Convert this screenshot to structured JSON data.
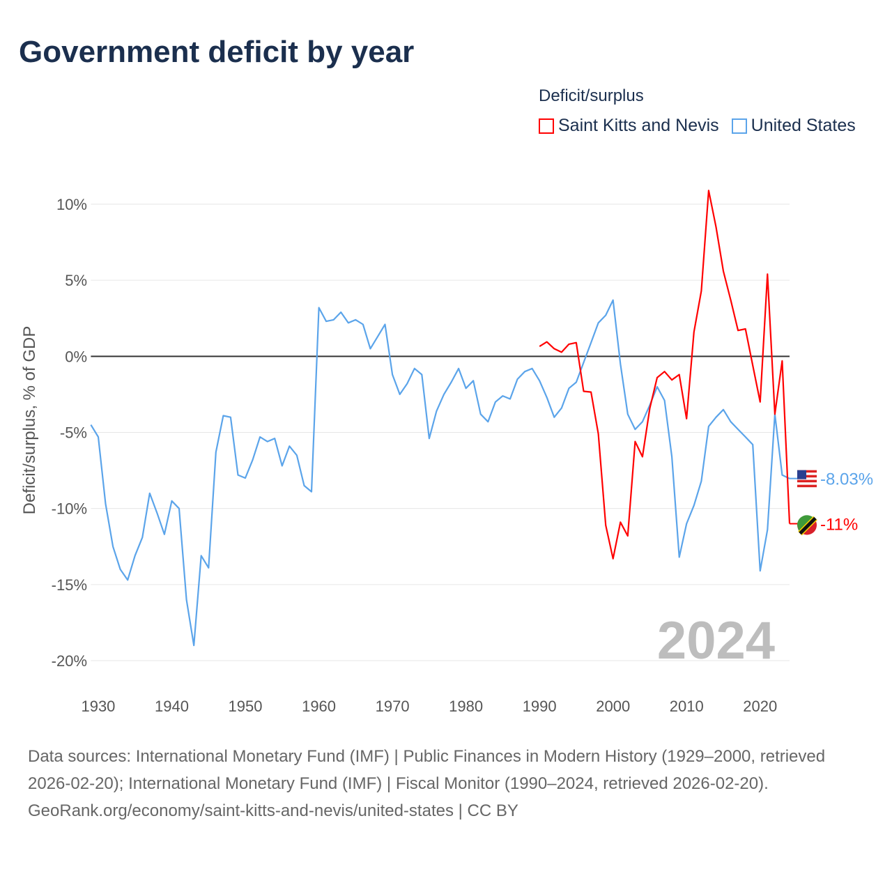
{
  "title": "Government deficit by year",
  "legend": {
    "title": "Deficit/surplus",
    "items": [
      {
        "label": "Saint Kitts and Nevis",
        "color": "#ff0000"
      },
      {
        "label": "United States",
        "color": "#5ba4ea"
      }
    ]
  },
  "watermark_year": "2024",
  "footer": {
    "sources": "Data sources: International Monetary Fund (IMF) | Public Finances in Modern History (1929–2000, retrieved 2026-02-20); International Monetary Fund (IMF) | Fiscal Monitor (1990–2024, retrieved 2026-02-20).",
    "credit": "GeoRank.org/economy/saint-kitts-and-nevis/united-states | CC BY"
  },
  "chart_data": {
    "type": "line",
    "title": "Government deficit by year",
    "xlabel": "",
    "ylabel": "Deficit/surplus, % of GDP",
    "xlim": [
      1929,
      2024
    ],
    "ylim": [
      -20,
      10
    ],
    "xticks": [
      1930,
      1940,
      1950,
      1960,
      1970,
      1980,
      1990,
      2000,
      2010,
      2020
    ],
    "xtick_labels": [
      "1930",
      "1940",
      "1950",
      "1960",
      "1970",
      "1980",
      "1990",
      "2000",
      "2010",
      "2020"
    ],
    "yticks": [
      10,
      5,
      0,
      -5,
      -10,
      -15,
      -20
    ],
    "ytick_labels": [
      "10%",
      "5%",
      "0%",
      "-5%",
      "-10%",
      "-15%",
      "-20%"
    ],
    "grid": true,
    "legend_position": "top-right",
    "series": [
      {
        "name": "United States",
        "color": "#5ba4ea",
        "end_label": "-8.03%",
        "start_year": 1929,
        "values": [
          -4.5,
          -5.3,
          -9.7,
          -12.5,
          -14.0,
          -14.7,
          -13.1,
          -11.9,
          -9.0,
          -10.3,
          -11.7,
          -9.5,
          -10.0,
          -16.0,
          -19.0,
          -13.1,
          -13.9,
          -6.3,
          -3.9,
          -4.0,
          -7.8,
          -8.0,
          -6.8,
          -5.3,
          -5.6,
          -5.4,
          -7.2,
          -5.9,
          -6.5,
          -8.5,
          -8.9,
          3.2,
          2.3,
          2.4,
          2.9,
          2.2,
          2.4,
          2.1,
          0.5,
          1.3,
          2.1,
          -1.2,
          -2.5,
          -1.8,
          -0.8,
          -1.2,
          -5.4,
          -3.6,
          -2.5,
          -1.7,
          -0.8,
          -2.1,
          -1.6,
          -3.8,
          -4.3,
          -3.0,
          -2.6,
          -2.8,
          -1.5,
          -1.0,
          -0.8,
          -1.6,
          -2.7,
          -4.0,
          -3.4,
          -2.1,
          -1.7,
          -0.4,
          0.9,
          2.2,
          2.7,
          3.7,
          -0.5,
          -3.8,
          -4.8,
          -4.3,
          -3.2,
          -2.0,
          -2.9,
          -6.6,
          -13.2,
          -11.0,
          -9.8,
          -8.2,
          -4.6,
          -4.0,
          -3.5,
          -4.3,
          -4.8,
          -5.3,
          -5.8,
          -14.1,
          -11.4,
          -3.8,
          -7.8,
          -8.03
        ]
      },
      {
        "name": "Saint Kitts and Nevis",
        "color": "#ff0000",
        "end_label": "-11%",
        "start_year": 1990,
        "values": [
          0.65,
          0.95,
          0.5,
          0.27,
          0.8,
          0.9,
          -2.3,
          -2.35,
          -5.1,
          -11.1,
          -13.3,
          -10.9,
          -11.8,
          -5.6,
          -6.6,
          -3.4,
          -1.4,
          -1.0,
          -1.55,
          -1.2,
          -4.1,
          1.6,
          4.3,
          10.9,
          8.5,
          5.6,
          3.7,
          1.7,
          1.8,
          -0.6,
          -3.0,
          5.4,
          -3.8,
          -0.3,
          -11.0
        ]
      }
    ]
  }
}
